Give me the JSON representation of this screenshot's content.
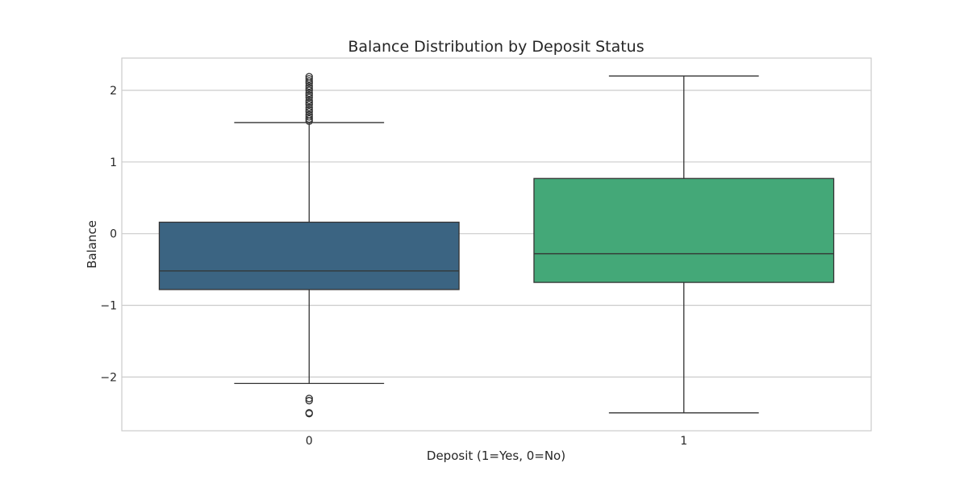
{
  "chart_data": {
    "type": "box",
    "title": "Balance Distribution by Deposit Status",
    "xlabel": "Deposit (1=Yes, 0=No)",
    "ylabel": "Balance",
    "ylim": [
      -2.75,
      2.45
    ],
    "y_ticks": [
      {
        "value": -2,
        "label": "−2"
      },
      {
        "value": -1,
        "label": "−1"
      },
      {
        "value": 0,
        "label": "0"
      },
      {
        "value": 1,
        "label": "1"
      },
      {
        "value": 2,
        "label": "2"
      }
    ],
    "grid": true,
    "categories": [
      "0",
      "1"
    ],
    "boxes": [
      {
        "category": "0",
        "color": "#3b6482",
        "whisker_low": -2.09,
        "q1": -0.78,
        "median": -0.52,
        "q3": 0.16,
        "whisker_high": 1.55,
        "outliers": [
          1.57,
          1.6,
          1.63,
          1.66,
          1.7,
          1.73,
          1.76,
          1.8,
          1.83,
          1.86,
          1.9,
          1.93,
          1.96,
          2.0,
          2.03,
          2.06,
          2.1,
          2.13,
          2.16,
          2.19,
          -2.3,
          -2.33,
          -2.5,
          -2.51
        ]
      },
      {
        "category": "1",
        "color": "#44a878",
        "whisker_low": -2.5,
        "q1": -0.68,
        "median": -0.28,
        "q3": 0.77,
        "whisker_high": 2.2,
        "outliers": []
      }
    ]
  }
}
